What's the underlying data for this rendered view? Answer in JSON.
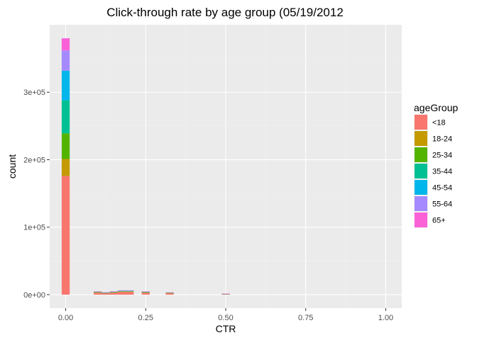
{
  "chart_data": {
    "type": "bar",
    "subtype": "stacked-histogram",
    "title": "Click-through rate by age group (05/19/2012",
    "xlabel": "CTR",
    "ylabel": "count",
    "xlim": [
      -0.05,
      1.05
    ],
    "ylim": [
      -20000,
      400000
    ],
    "bin_width": 0.025,
    "x_ticks": [
      {
        "value": 0.0,
        "label": "0.00"
      },
      {
        "value": 0.25,
        "label": "0.25"
      },
      {
        "value": 0.5,
        "label": "0.50"
      },
      {
        "value": 0.75,
        "label": "0.75"
      },
      {
        "value": 1.0,
        "label": "1.00"
      }
    ],
    "y_ticks": [
      {
        "value": 0,
        "label": "0e+00"
      },
      {
        "value": 100000,
        "label": "1e+05"
      },
      {
        "value": 200000,
        "label": "2e+05"
      },
      {
        "value": 300000,
        "label": "3e+05"
      }
    ],
    "grid": true,
    "legend": {
      "title": "ageGroup",
      "position": "right"
    },
    "bins": [
      0.0,
      0.1,
      0.125,
      0.15,
      0.175,
      0.2,
      0.25,
      0.325,
      0.5
    ],
    "series": [
      {
        "name": "<18",
        "color": "#F8766D",
        "values": [
          176000,
          3000,
          2000,
          3000,
          4000,
          4000,
          3000,
          2000,
          1000
        ]
      },
      {
        "name": "18-24",
        "color": "#C49A00",
        "values": [
          25000,
          400,
          300,
          400,
          500,
          500,
          400,
          300,
          100
        ]
      },
      {
        "name": "25-34",
        "color": "#53B400",
        "values": [
          38000,
          400,
          300,
          400,
          500,
          500,
          400,
          300,
          100
        ]
      },
      {
        "name": "35-44",
        "color": "#00C094",
        "values": [
          49000,
          400,
          300,
          400,
          500,
          500,
          400,
          300,
          100
        ]
      },
      {
        "name": "45-54",
        "color": "#00B6EB",
        "values": [
          44000,
          300,
          200,
          300,
          400,
          400,
          300,
          200,
          100
        ]
      },
      {
        "name": "55-64",
        "color": "#A58AFF",
        "values": [
          30000,
          200,
          200,
          200,
          300,
          300,
          200,
          100,
          50
        ]
      },
      {
        "name": "65+",
        "color": "#FB61D7",
        "values": [
          18000,
          100,
          100,
          100,
          200,
          200,
          100,
          100,
          50
        ]
      }
    ]
  },
  "colors": {
    "panel_background": "#EBEBEB",
    "grid_major": "#FFFFFF",
    "grid_minor": "#F2F2F2"
  }
}
